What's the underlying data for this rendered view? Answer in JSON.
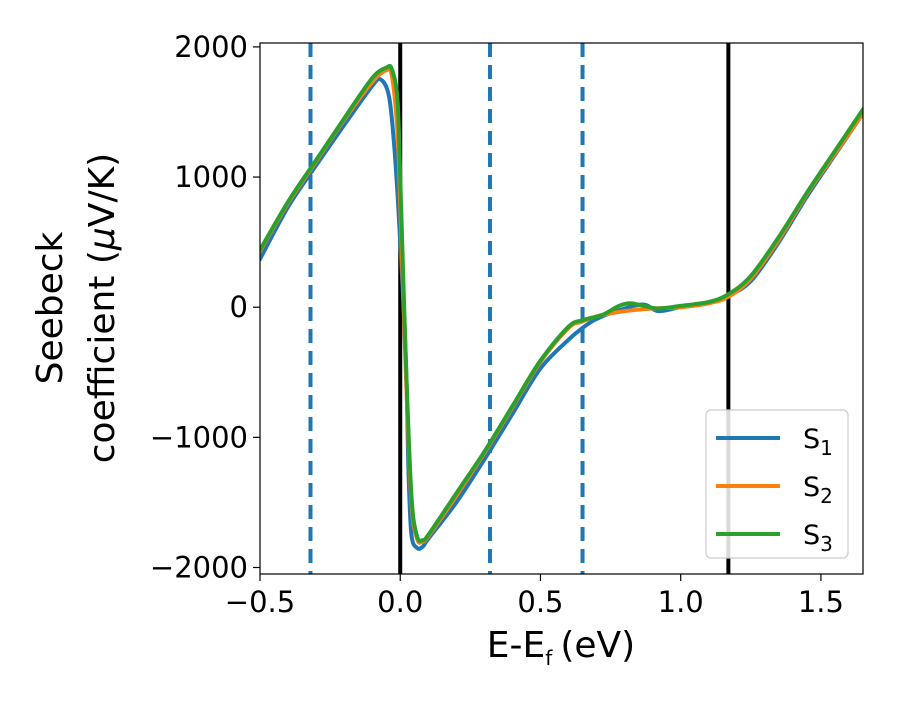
{
  "chart_data": {
    "type": "line",
    "title": "",
    "xlabel": "E-E",
    "xlabel_sub": "f",
    "xlabel_unit": "(eV)",
    "ylabel_line1": "Seebeck",
    "ylabel_line2_text": "coefficient  (",
    "ylabel_mu": "μ",
    "ylabel_line2_end": "V/K)",
    "xlim": [
      -0.5,
      1.65
    ],
    "ylim": [
      -2050,
      2030
    ],
    "x_ticks": [
      -0.5,
      0.0,
      0.5,
      1.0,
      1.5
    ],
    "x_tick_labels": [
      "−0.5",
      "0.0",
      "0.5",
      "1.0",
      "1.5"
    ],
    "y_ticks": [
      -2000,
      -1000,
      0,
      1000,
      2000
    ],
    "y_tick_labels": [
      "−2000",
      "−1000",
      "0",
      "1000",
      "2000"
    ],
    "grid": false,
    "legend_position": "bottom-right",
    "vertical_lines": [
      {
        "x": -0.32,
        "style": "dashed",
        "color": "#1f77b4"
      },
      {
        "x": 0.0,
        "style": "solid",
        "color": "#000000"
      },
      {
        "x": 0.32,
        "style": "dashed",
        "color": "#1f77b4"
      },
      {
        "x": 0.65,
        "style": "dashed",
        "color": "#1f77b4"
      },
      {
        "x": 1.17,
        "style": "solid",
        "color": "#000000"
      }
    ],
    "series": [
      {
        "name": "S",
        "sub": "1",
        "color": "#1f77b4",
        "points": [
          [
            -0.5,
            370
          ],
          [
            -0.4,
            770
          ],
          [
            -0.3,
            1090
          ],
          [
            -0.2,
            1400
          ],
          [
            -0.1,
            1700
          ],
          [
            -0.07,
            1750
          ],
          [
            -0.04,
            1620
          ],
          [
            -0.02,
            1200
          ],
          [
            0.0,
            500
          ],
          [
            0.02,
            -400
          ],
          [
            0.03,
            -1300
          ],
          [
            0.04,
            -1750
          ],
          [
            0.06,
            -1850
          ],
          [
            0.08,
            -1840
          ],
          [
            0.1,
            -1780
          ],
          [
            0.2,
            -1500
          ],
          [
            0.3,
            -1170
          ],
          [
            0.4,
            -820
          ],
          [
            0.5,
            -470
          ],
          [
            0.6,
            -250
          ],
          [
            0.65,
            -160
          ],
          [
            0.7,
            -90
          ],
          [
            0.8,
            -10
          ],
          [
            0.87,
            20
          ],
          [
            0.92,
            -30
          ],
          [
            1.0,
            0
          ],
          [
            1.1,
            30
          ],
          [
            1.17,
            90
          ],
          [
            1.25,
            200
          ],
          [
            1.35,
            500
          ],
          [
            1.45,
            850
          ],
          [
            1.55,
            1170
          ],
          [
            1.65,
            1490
          ]
        ]
      },
      {
        "name": "S",
        "sub": "2",
        "color": "#ff7f0e",
        "points": [
          [
            -0.5,
            430
          ],
          [
            -0.4,
            800
          ],
          [
            -0.3,
            1120
          ],
          [
            -0.2,
            1440
          ],
          [
            -0.1,
            1730
          ],
          [
            -0.05,
            1820
          ],
          [
            -0.03,
            1780
          ],
          [
            -0.01,
            1350
          ],
          [
            0.0,
            800
          ],
          [
            0.02,
            -500
          ],
          [
            0.04,
            -1500
          ],
          [
            0.06,
            -1780
          ],
          [
            0.08,
            -1800
          ],
          [
            0.1,
            -1760
          ],
          [
            0.2,
            -1450
          ],
          [
            0.3,
            -1120
          ],
          [
            0.4,
            -770
          ],
          [
            0.5,
            -420
          ],
          [
            0.6,
            -160
          ],
          [
            0.65,
            -110
          ],
          [
            0.7,
            -70
          ],
          [
            0.8,
            -30
          ],
          [
            0.9,
            -10
          ],
          [
            1.0,
            0
          ],
          [
            1.1,
            30
          ],
          [
            1.17,
            80
          ],
          [
            1.25,
            220
          ],
          [
            1.35,
            520
          ],
          [
            1.45,
            870
          ],
          [
            1.55,
            1180
          ],
          [
            1.65,
            1490
          ]
        ]
      },
      {
        "name": "S",
        "sub": "3",
        "color": "#2ca02c",
        "points": [
          [
            -0.5,
            440
          ],
          [
            -0.4,
            810
          ],
          [
            -0.3,
            1130
          ],
          [
            -0.2,
            1450
          ],
          [
            -0.1,
            1760
          ],
          [
            -0.05,
            1840
          ],
          [
            -0.03,
            1830
          ],
          [
            -0.01,
            1600
          ],
          [
            0.0,
            1000
          ],
          [
            0.02,
            -400
          ],
          [
            0.04,
            -1450
          ],
          [
            0.06,
            -1760
          ],
          [
            0.08,
            -1790
          ],
          [
            0.1,
            -1750
          ],
          [
            0.2,
            -1430
          ],
          [
            0.3,
            -1110
          ],
          [
            0.4,
            -760
          ],
          [
            0.5,
            -410
          ],
          [
            0.6,
            -150
          ],
          [
            0.65,
            -100
          ],
          [
            0.72,
            -60
          ],
          [
            0.78,
            10
          ],
          [
            0.82,
            30
          ],
          [
            0.87,
            10
          ],
          [
            0.92,
            -10
          ],
          [
            1.0,
            10
          ],
          [
            1.1,
            40
          ],
          [
            1.17,
            100
          ],
          [
            1.25,
            240
          ],
          [
            1.35,
            540
          ],
          [
            1.45,
            880
          ],
          [
            1.55,
            1200
          ],
          [
            1.65,
            1520
          ]
        ]
      }
    ]
  }
}
